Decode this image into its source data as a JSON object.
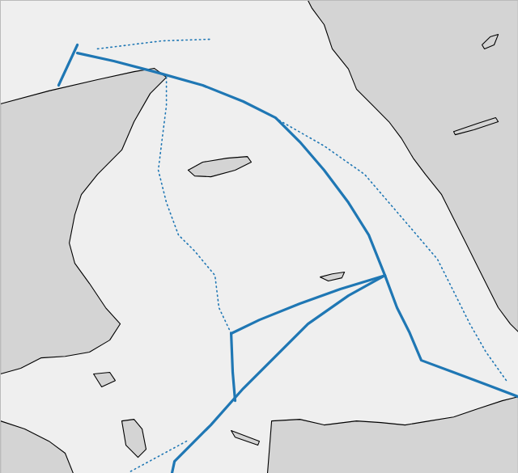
{
  "chart_data": {
    "type": "map",
    "tick_labels": false,
    "color": "#1f77b4",
    "xlim": [
      9.7,
      12.708
    ],
    "ylim": [
      55.717,
      58.08
    ],
    "land": [
      [
        [
          9.7,
          57.563
        ],
        [
          9.982,
          57.628
        ],
        [
          10.264,
          57.684
        ],
        [
          10.476,
          57.724
        ],
        [
          10.593,
          57.741
        ],
        [
          10.664,
          57.696
        ],
        [
          10.57,
          57.615
        ],
        [
          10.476,
          57.474
        ],
        [
          10.405,
          57.333
        ],
        [
          10.264,
          57.211
        ],
        [
          10.17,
          57.11
        ],
        [
          10.132,
          57.009
        ],
        [
          10.1,
          56.868
        ],
        [
          10.132,
          56.767
        ],
        [
          10.217,
          56.666
        ],
        [
          10.311,
          56.545
        ],
        [
          10.396,
          56.464
        ],
        [
          10.335,
          56.383
        ],
        [
          10.217,
          56.323
        ],
        [
          10.076,
          56.302
        ],
        [
          9.935,
          56.294
        ],
        [
          9.818,
          56.242
        ],
        [
          9.7,
          56.214
        ]
      ],
      [
        [
          11.486,
          58.08
        ],
        [
          11.51,
          58.04
        ],
        [
          11.58,
          57.959
        ],
        [
          11.627,
          57.838
        ],
        [
          11.721,
          57.737
        ],
        [
          11.768,
          57.636
        ],
        [
          11.862,
          57.555
        ],
        [
          11.956,
          57.474
        ],
        [
          12.027,
          57.393
        ],
        [
          12.097,
          57.292
        ],
        [
          12.168,
          57.211
        ],
        [
          12.262,
          57.11
        ],
        [
          12.332,
          56.989
        ],
        [
          12.403,
          56.868
        ],
        [
          12.473,
          56.747
        ],
        [
          12.52,
          56.666
        ],
        [
          12.591,
          56.545
        ],
        [
          12.661,
          56.464
        ],
        [
          12.708,
          56.424
        ],
        [
          12.708,
          58.08
        ]
      ],
      [
        [
          10.79,
          57.232
        ],
        [
          10.875,
          57.272
        ],
        [
          11.016,
          57.292
        ],
        [
          11.134,
          57.3
        ],
        [
          11.157,
          57.272
        ],
        [
          11.063,
          57.232
        ],
        [
          10.922,
          57.199
        ],
        [
          10.828,
          57.203
        ]
      ],
      [
        [
          11.557,
          56.698
        ],
        [
          11.627,
          56.714
        ],
        [
          11.698,
          56.723
        ],
        [
          11.683,
          56.694
        ],
        [
          11.604,
          56.678
        ]
      ],
      [
        [
          12.497,
          57.858
        ],
        [
          12.544,
          57.898
        ],
        [
          12.591,
          57.91
        ],
        [
          12.567,
          57.858
        ],
        [
          12.511,
          57.838
        ]
      ],
      [
        [
          12.332,
          57.425
        ],
        [
          12.473,
          57.466
        ],
        [
          12.576,
          57.494
        ],
        [
          12.591,
          57.474
        ],
        [
          12.45,
          57.434
        ],
        [
          12.341,
          57.409
        ]
      ],
      [
        [
          11.275,
          55.979
        ],
        [
          11.439,
          55.987
        ],
        [
          11.58,
          55.959
        ],
        [
          11.768,
          55.979
        ],
        [
          11.909,
          55.971
        ],
        [
          12.05,
          55.959
        ],
        [
          12.191,
          55.979
        ],
        [
          12.332,
          55.999
        ],
        [
          12.473,
          56.04
        ],
        [
          12.614,
          56.08
        ],
        [
          12.708,
          56.1
        ],
        [
          12.708,
          55.717
        ],
        [
          11.251,
          55.717
        ]
      ],
      [
        [
          10.405,
          55.979
        ],
        [
          10.476,
          55.987
        ],
        [
          10.523,
          55.939
        ],
        [
          10.546,
          55.838
        ],
        [
          10.499,
          55.797
        ],
        [
          10.429,
          55.858
        ]
      ],
      [
        [
          9.7,
          55.979
        ],
        [
          9.841,
          55.939
        ],
        [
          9.982,
          55.878
        ],
        [
          10.076,
          55.818
        ],
        [
          10.123,
          55.717
        ],
        [
          9.7,
          55.717
        ]
      ],
      [
        [
          10.241,
          56.214
        ],
        [
          10.335,
          56.222
        ],
        [
          10.367,
          56.181
        ],
        [
          10.288,
          56.149
        ]
      ],
      [
        [
          11.04,
          55.931
        ],
        [
          11.204,
          55.878
        ],
        [
          11.195,
          55.858
        ],
        [
          11.063,
          55.898
        ]
      ]
    ],
    "series": [
      {
        "line_style": "solid",
        "values": [
          [
            10.147,
            57.817
          ],
          [
            10.358,
            57.777
          ],
          [
            10.593,
            57.724
          ],
          [
            10.875,
            57.656
          ],
          [
            11.11,
            57.575
          ],
          [
            11.298,
            57.494
          ],
          [
            11.439,
            57.373
          ],
          [
            11.58,
            57.232
          ],
          [
            11.721,
            57.07
          ],
          [
            11.839,
            56.908
          ],
          [
            11.933,
            56.706
          ],
          [
            12.003,
            56.545
          ],
          [
            12.074,
            56.424
          ],
          [
            12.144,
            56.282
          ],
          [
            12.332,
            56.222
          ],
          [
            12.52,
            56.161
          ],
          [
            12.708,
            56.1
          ]
        ]
      },
      {
        "line_style": "solid",
        "values": [
          [
            10.038,
            57.656
          ],
          [
            10.147,
            57.858
          ]
        ]
      },
      {
        "line_style": "solid",
        "values": [
          [
            11.933,
            56.706
          ],
          [
            11.721,
            56.605
          ],
          [
            11.486,
            56.464
          ],
          [
            11.298,
            56.302
          ],
          [
            11.11,
            56.141
          ],
          [
            10.922,
            55.959
          ],
          [
            10.711,
            55.777
          ],
          [
            10.696,
            55.717
          ]
        ]
      },
      {
        "line_style": "solid",
        "values": [
          [
            11.933,
            56.706
          ],
          [
            11.674,
            56.638
          ],
          [
            11.439,
            56.565
          ],
          [
            11.204,
            56.484
          ],
          [
            11.04,
            56.416
          ]
        ]
      },
      {
        "line_style": "solid",
        "values": [
          [
            11.04,
            56.416
          ],
          [
            11.049,
            56.222
          ],
          [
            11.063,
            56.08
          ]
        ]
      },
      {
        "line_style": "dotted",
        "values": [
          [
            10.664,
            57.696
          ],
          [
            10.664,
            57.555
          ],
          [
            10.64,
            57.393
          ],
          [
            10.617,
            57.232
          ],
          [
            10.664,
            57.07
          ],
          [
            10.734,
            56.908
          ],
          [
            10.828,
            56.828
          ],
          [
            10.946,
            56.706
          ],
          [
            10.969,
            56.545
          ],
          [
            11.04,
            56.416
          ]
        ]
      },
      {
        "line_style": "dotted",
        "values": [
          [
            11.251,
            57.514
          ],
          [
            11.58,
            57.353
          ],
          [
            11.815,
            57.211
          ],
          [
            11.956,
            57.07
          ],
          [
            12.097,
            56.929
          ],
          [
            12.238,
            56.787
          ],
          [
            12.332,
            56.626
          ],
          [
            12.426,
            56.464
          ],
          [
            12.52,
            56.323
          ],
          [
            12.638,
            56.181
          ]
        ]
      },
      {
        "line_style": "dotted",
        "values": [
          [
            10.781,
            55.878
          ],
          [
            10.452,
            55.725
          ]
        ]
      },
      {
        "line_style": "dotted",
        "values": [
          [
            10.264,
            57.838
          ],
          [
            10.64,
            57.878
          ],
          [
            10.922,
            57.886
          ]
        ]
      }
    ]
  }
}
